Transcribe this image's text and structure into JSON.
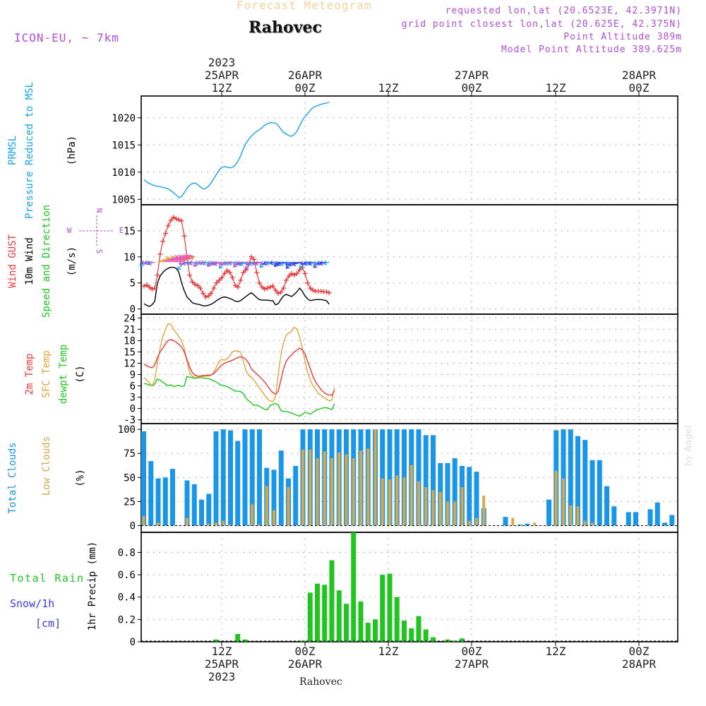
{
  "header": {
    "title": "Forecast Meteogram",
    "location": "Rahovec",
    "model": "ICON-EU, ~ 7km",
    "requested": "requested lon,lat (20.6523E, 42.3971N)",
    "grid_point": "grid point closest lon,lat (20.625E, 42.375N)",
    "point_altitude": "Point Altitude 389m",
    "model_altitude": "Model Point Altitude 389.625m"
  },
  "footer": {
    "location": "Rahovec",
    "signature": "by Angel"
  },
  "colors": {
    "pressure": "#1aa3e8",
    "gust": "#e83a3a",
    "wind": "#000000",
    "temp": "#e83a3a",
    "sfc": "#e3a53a",
    "dewpt": "#1ec81e",
    "total_clouds": "#1a96e8",
    "low_clouds": "#d4a84e",
    "rain": "#22c422",
    "snow": "#3a3ae8",
    "direction": "#b14fd4"
  },
  "chart_data": [
    {
      "type": "line",
      "name": "pressure",
      "ylabel_lines": [
        "PRMSL",
        "Pressure Reduced to MSL",
        "(hPa)"
      ],
      "yticks": [
        1005,
        1010,
        1015,
        1020
      ],
      "ylim": [
        1004,
        1024
      ],
      "x_start": 0,
      "x_step": 1,
      "values": [
        1008.6,
        1008.2,
        1007.9,
        1007.7,
        1007.5,
        1007.4,
        1007.3,
        1007.2,
        1007.1,
        1006.9,
        1006.6,
        1006.2,
        1005.8,
        1005.3,
        1005.5,
        1006.2,
        1007.0,
        1007.6,
        1007.9,
        1008.0,
        1007.7,
        1007.3,
        1006.9,
        1007.0,
        1007.4,
        1008.0,
        1008.8,
        1009.6,
        1010.4,
        1010.9,
        1011.0,
        1010.9,
        1010.8,
        1010.9,
        1011.3,
        1012.0,
        1013.0,
        1014.3,
        1015.3,
        1016.0,
        1016.6,
        1017.1,
        1017.5,
        1017.8,
        1018.2,
        1018.6,
        1018.9,
        1019.1,
        1019.1,
        1019.0,
        1018.6,
        1017.9,
        1017.3,
        1017.0,
        1016.7,
        1016.6,
        1016.9,
        1017.5,
        1018.5,
        1019.5,
        1020.2,
        1020.8,
        1021.4,
        1021.9,
        1022.1,
        1022.3,
        1022.5,
        1022.6,
        1022.7,
        1022.9
      ]
    },
    {
      "type": "line",
      "name": "wind",
      "ylabel_lines": [
        "Wind GUST",
        "10m Wind",
        "Speed and Direction",
        "(m/s)"
      ],
      "compass": {
        "n": "N",
        "s": "S",
        "e": "E",
        "w": "W"
      },
      "yticks": [
        0,
        5,
        10,
        15
      ],
      "ylim": [
        -1,
        20
      ],
      "x_start": 0,
      "x_step": 1,
      "series": [
        {
          "name": "Wind GUST",
          "values": [
            4.4,
            4.6,
            4.2,
            3.8,
            4.0,
            6.5,
            10.5,
            13.0,
            14.5,
            16.0,
            17.0,
            17.6,
            17.3,
            17.1,
            16.9,
            14.0,
            10.0,
            6.5,
            5.2,
            4.7,
            4.5,
            4.0,
            3.0,
            2.3,
            2.5,
            3.0,
            4.0,
            5.0,
            5.5,
            6.0,
            6.8,
            7.4,
            7.0,
            6.0,
            4.5,
            4.2,
            5.5,
            7.0,
            7.5,
            8.5,
            10.0,
            9.5,
            7.0,
            5.0,
            4.2,
            3.8,
            4.0,
            4.2,
            4.4,
            3.6,
            3.0,
            3.2,
            4.0,
            5.5,
            6.3,
            6.8,
            6.5,
            6.8,
            7.5,
            8.0,
            6.8,
            5.0,
            4.0,
            3.6,
            3.4,
            3.4,
            3.4,
            3.3,
            3.3,
            3.1
          ]
        },
        {
          "name": "10m Wind",
          "values": [
            1.0,
            0.7,
            0.5,
            0.8,
            1.5,
            5.0,
            6.3,
            7.0,
            7.5,
            7.8,
            8.0,
            8.0,
            7.8,
            7.0,
            5.0,
            3.5,
            2.3,
            1.8,
            1.2,
            1.0,
            0.9,
            0.8,
            0.6,
            0.6,
            0.7,
            0.9,
            1.2,
            1.6,
            1.9,
            2.2,
            2.3,
            2.2,
            2.0,
            1.8,
            1.5,
            1.4,
            1.6,
            2.0,
            2.4,
            2.8,
            3.1,
            2.7,
            2.2,
            1.8,
            1.7,
            1.7,
            1.7,
            1.6,
            1.6,
            0.8,
            1.0,
            1.8,
            2.5,
            2.8,
            2.6,
            2.4,
            2.8,
            3.3,
            4.0,
            3.4,
            2.5,
            1.9,
            1.6,
            1.7,
            1.8,
            1.8,
            1.8,
            1.7,
            1.6,
            0.9
          ]
        }
      ]
    },
    {
      "type": "line",
      "name": "temperature",
      "ylabel_lines": [
        "2m Temp",
        "SFC Temp",
        "dewpt Temp",
        "(C)"
      ],
      "yticks": [
        -3,
        0,
        3,
        6,
        9,
        12,
        15,
        18,
        21,
        24
      ],
      "ylim": [
        -4,
        25
      ],
      "x_start": 0,
      "x_step": 1,
      "series": [
        {
          "name": "2m Temp",
          "values": [
            11.8,
            11.3,
            11.0,
            10.8,
            11.5,
            13.5,
            15.0,
            16.0,
            17.2,
            18.0,
            18.3,
            18.0,
            17.6,
            17.0,
            16.3,
            15.0,
            13.0,
            11.0,
            9.5,
            8.8,
            8.6,
            8.6,
            8.7,
            8.8,
            8.8,
            8.9,
            9.3,
            10.0,
            10.8,
            11.5,
            12.0,
            12.3,
            12.5,
            12.8,
            13.2,
            13.5,
            13.7,
            13.5,
            13.0,
            12.0,
            10.5,
            9.8,
            9.2,
            8.5,
            7.8,
            7.0,
            6.0,
            5.0,
            4.2,
            3.8,
            4.5,
            7.5,
            10.5,
            12.5,
            13.5,
            14.2,
            15.0,
            15.5,
            16.0,
            15.5,
            14.5,
            12.5,
            10.5,
            8.5,
            7.0,
            6.0,
            5.0,
            4.3,
            3.8,
            3.6,
            3.5,
            4.8
          ]
        },
        {
          "name": "SFC Temp",
          "values": [
            8.2,
            7.5,
            6.8,
            6.0,
            7.5,
            12.0,
            16.0,
            19.0,
            21.0,
            22.5,
            22.3,
            21.0,
            20.0,
            19.0,
            18.0,
            16.0,
            12.5,
            9.5,
            8.5,
            8.2,
            8.3,
            8.5,
            8.5,
            8.6,
            8.6,
            8.8,
            9.5,
            11.0,
            12.5,
            13.0,
            12.8,
            13.2,
            14.0,
            15.0,
            15.3,
            15.2,
            15.0,
            12.5,
            10.0,
            8.8,
            8.2,
            7.5,
            6.5,
            5.5,
            4.5,
            3.5,
            2.5,
            2.0,
            1.8,
            3.0,
            9.0,
            14.0,
            17.5,
            19.5,
            20.0,
            20.5,
            21.5,
            21.0,
            19.0,
            16.0,
            12.5,
            9.5,
            7.5,
            6.0,
            5.0,
            4.0,
            3.5,
            3.0,
            2.5,
            2.0,
            2.3,
            5.5
          ]
        },
        {
          "name": "dewpt Temp",
          "values": [
            6.6,
            6.5,
            6.3,
            6.0,
            6.5,
            7.8,
            7.5,
            7.0,
            6.5,
            6.0,
            6.3,
            5.8,
            6.0,
            6.2,
            5.8,
            6.0,
            8.5,
            8.3,
            8.2,
            8.0,
            8.1,
            8.2,
            8.1,
            8.0,
            7.9,
            7.7,
            7.3,
            7.0,
            6.5,
            6.2,
            6.0,
            5.8,
            5.5,
            5.0,
            4.6,
            4.6,
            4.5,
            4.0,
            2.8,
            2.0,
            1.5,
            0.8,
            0.9,
            0.6,
            0.2,
            -0.2,
            -0.3,
            0.8,
            1.1,
            1.3,
            1.0,
            -0.5,
            -0.8,
            -0.8,
            -1.0,
            -1.2,
            -1.5,
            -1.8,
            -2.0,
            -1.6,
            -1.0,
            -1.2,
            -1.5,
            -1.0,
            -0.5,
            -0.2,
            0.0,
            0.2,
            0.2,
            0.0,
            -0.3,
            1.3
          ]
        }
      ]
    },
    {
      "type": "bar",
      "name": "clouds",
      "ylabel_lines": [
        "Total Clouds",
        "Low Clouds",
        "(%)"
      ],
      "yticks": [
        0,
        25,
        50,
        75,
        100
      ],
      "ylim": [
        -7,
        106
      ],
      "series": [
        {
          "name": "Total Clouds",
          "values": [
            98,
            67,
            49,
            50,
            59,
            0,
            47,
            43,
            27,
            33,
            98,
            100,
            99,
            88,
            100,
            100,
            100,
            60,
            58,
            78,
            49,
            62,
            100,
            100,
            100,
            100,
            100,
            100,
            100,
            100,
            100,
            100,
            100,
            100,
            100,
            100,
            100,
            100,
            100,
            94,
            94,
            65,
            65,
            70,
            62,
            61,
            56,
            18,
            0,
            0,
            9,
            0,
            1,
            2,
            0,
            0,
            27,
            99,
            100,
            100,
            93,
            89,
            68,
            68,
            41,
            20,
            0,
            14,
            14,
            0,
            17,
            24,
            3,
            11
          ]
        },
        {
          "name": "Low Clouds",
          "values": [
            10,
            0,
            3,
            0,
            0,
            0,
            8,
            0,
            0,
            2,
            3,
            5,
            1,
            0,
            0,
            22,
            1,
            41,
            16,
            0,
            40,
            0,
            79,
            79,
            70,
            77,
            70,
            76,
            74,
            70,
            78,
            80,
            100,
            49,
            48,
            52,
            50,
            63,
            46,
            40,
            37,
            35,
            25,
            25,
            40,
            5,
            8,
            31,
            0,
            0,
            0,
            8,
            0,
            0,
            3,
            0,
            0,
            57,
            49,
            21,
            20,
            5,
            3,
            0,
            0,
            0,
            0,
            0,
            0,
            0,
            0,
            0,
            0,
            0
          ]
        }
      ]
    },
    {
      "type": "bar",
      "name": "precip",
      "ylabel_lines": [
        "Total Rain",
        "Snow/1h",
        "[cm]",
        "1hr Precip (mm)"
      ],
      "yticks": [
        0,
        0.2,
        0.4,
        0.6,
        0.8
      ],
      "yticklabels": [
        "0",
        "0.2",
        "0.4",
        "0.6",
        "0.8"
      ],
      "ylim": [
        0,
        0.98
      ],
      "series": [
        {
          "name": "Total Rain",
          "values": [
            0,
            0,
            0,
            0,
            0,
            0,
            0,
            0,
            0,
            0,
            0.02,
            0,
            0,
            0.07,
            0.02,
            0,
            0,
            0,
            0,
            0,
            0,
            0,
            0.01,
            0.44,
            0.52,
            0.51,
            0.73,
            0.46,
            0.34,
            0.98,
            0.36,
            0.17,
            0.2,
            0.6,
            0.61,
            0.4,
            0.19,
            0.12,
            0.23,
            0.11,
            0.04,
            0,
            0.02,
            0.01,
            0.03,
            0,
            0,
            0,
            0,
            0,
            0,
            0,
            0,
            0,
            0,
            0,
            0,
            0,
            0,
            0,
            0,
            0,
            0,
            0,
            0,
            0,
            0,
            0,
            0,
            0,
            0,
            0,
            0,
            0
          ]
        }
      ]
    }
  ],
  "time_axis": {
    "top_labels": [
      {
        "lines": [
          "2023",
          "25APR",
          "12Z"
        ]
      },
      {
        "lines": [
          "26APR",
          "00Z"
        ]
      },
      {
        "lines": [
          "12Z"
        ]
      },
      {
        "lines": [
          "27APR",
          "00Z"
        ]
      },
      {
        "lines": [
          "12Z"
        ]
      },
      {
        "lines": [
          "28APR",
          "00Z"
        ]
      }
    ],
    "bottom_labels": [
      {
        "lines": [
          "12Z",
          "25APR",
          "2023"
        ]
      },
      {
        "lines": [
          "00Z",
          "26APR"
        ]
      },
      {
        "lines": [
          "12Z"
        ]
      },
      {
        "lines": [
          "00Z",
          "27APR"
        ]
      },
      {
        "lines": [
          "12Z"
        ]
      },
      {
        "lines": [
          "00Z",
          "28APR"
        ]
      }
    ]
  }
}
